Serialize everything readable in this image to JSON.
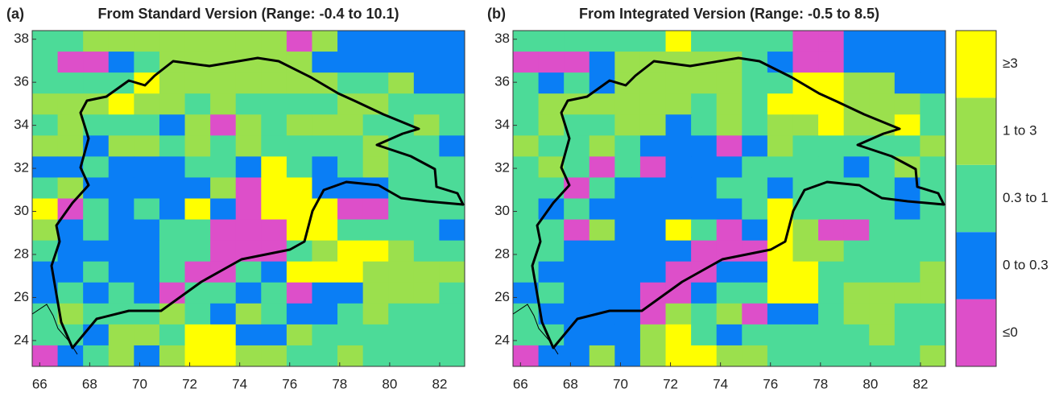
{
  "chart_data": [
    {
      "type": "heatmap",
      "panel_label": "(a)",
      "title": "From Standard Version (Range: -0.4 to 10.1)",
      "xlim": [
        65.7,
        83
      ],
      "ylim": [
        22.8,
        38.4
      ],
      "xticks": [
        66,
        68,
        70,
        72,
        74,
        76,
        78,
        80,
        82
      ],
      "yticks": [
        24,
        26,
        28,
        30,
        32,
        34,
        36,
        38
      ],
      "z": [
        [
          2,
          2,
          3,
          3,
          3,
          3,
          3,
          3,
          3,
          3,
          0,
          3,
          1,
          1,
          1,
          1,
          1
        ],
        [
          2,
          0,
          0,
          1,
          2,
          3,
          3,
          3,
          3,
          3,
          3,
          1,
          1,
          1,
          1,
          1,
          1
        ],
        [
          2,
          2,
          2,
          2,
          4,
          3,
          3,
          3,
          3,
          3,
          3,
          3,
          2,
          2,
          3,
          1,
          1
        ],
        [
          3,
          3,
          3,
          4,
          3,
          3,
          2,
          3,
          2,
          2,
          2,
          2,
          3,
          3,
          2,
          2,
          2
        ],
        [
          2,
          3,
          2,
          2,
          2,
          1,
          3,
          0,
          3,
          2,
          3,
          3,
          3,
          2,
          2,
          3,
          2
        ],
        [
          3,
          3,
          1,
          3,
          3,
          2,
          3,
          2,
          3,
          2,
          2,
          2,
          2,
          3,
          2,
          2,
          1
        ],
        [
          1,
          1,
          2,
          1,
          1,
          1,
          2,
          2,
          1,
          4,
          2,
          1,
          2,
          3,
          2,
          2,
          2
        ],
        [
          2,
          3,
          1,
          1,
          1,
          1,
          1,
          3,
          0,
          4,
          4,
          1,
          1,
          1,
          2,
          2,
          2
        ],
        [
          4,
          0,
          2,
          1,
          2,
          1,
          4,
          1,
          0,
          4,
          4,
          4,
          0,
          0,
          2,
          2,
          2
        ],
        [
          3,
          1,
          2,
          1,
          1,
          2,
          2,
          0,
          0,
          0,
          4,
          4,
          2,
          2,
          2,
          2,
          1
        ],
        [
          2,
          1,
          1,
          1,
          1,
          2,
          2,
          0,
          0,
          0,
          2,
          3,
          4,
          4,
          3,
          2,
          2
        ],
        [
          1,
          1,
          2,
          1,
          1,
          2,
          0,
          0,
          2,
          1,
          4,
          4,
          4,
          3,
          3,
          3,
          3
        ],
        [
          1,
          2,
          1,
          2,
          1,
          0,
          2,
          2,
          1,
          2,
          0,
          1,
          1,
          3,
          3,
          3,
          2
        ],
        [
          2,
          3,
          2,
          2,
          2,
          3,
          2,
          1,
          3,
          2,
          1,
          1,
          2,
          3,
          2,
          2,
          2
        ],
        [
          2,
          2,
          1,
          3,
          3,
          2,
          4,
          4,
          1,
          1,
          3,
          2,
          2,
          2,
          2,
          2,
          2
        ],
        [
          0,
          1,
          2,
          3,
          1,
          3,
          4,
          4,
          3,
          3,
          2,
          2,
          3,
          2,
          2,
          2,
          2
        ]
      ]
    },
    {
      "type": "heatmap",
      "panel_label": "(b)",
      "title": "From Integrated Version (Range: -0.5 to 8.5)",
      "xlim": [
        65.7,
        83
      ],
      "ylim": [
        22.8,
        38.4
      ],
      "xticks": [
        66,
        68,
        70,
        72,
        74,
        76,
        78,
        80,
        82
      ],
      "yticks": [
        24,
        26,
        28,
        30,
        32,
        34,
        36,
        38
      ],
      "z": [
        [
          2,
          2,
          2,
          2,
          2,
          2,
          4,
          2,
          2,
          2,
          2,
          0,
          0,
          1,
          1,
          1,
          1
        ],
        [
          0,
          0,
          0,
          1,
          3,
          3,
          3,
          3,
          3,
          2,
          1,
          0,
          0,
          1,
          1,
          1,
          1
        ],
        [
          2,
          1,
          2,
          1,
          3,
          3,
          3,
          3,
          3,
          2,
          2,
          4,
          4,
          3,
          3,
          1,
          1
        ],
        [
          2,
          3,
          3,
          3,
          3,
          3,
          3,
          2,
          3,
          2,
          4,
          4,
          4,
          3,
          3,
          3,
          2
        ],
        [
          2,
          3,
          2,
          2,
          3,
          3,
          1,
          2,
          3,
          2,
          3,
          3,
          4,
          3,
          3,
          4,
          2
        ],
        [
          3,
          2,
          2,
          3,
          2,
          1,
          1,
          1,
          0,
          1,
          3,
          2,
          2,
          2,
          2,
          2,
          3
        ],
        [
          2,
          3,
          2,
          0,
          2,
          0,
          1,
          1,
          1,
          2,
          2,
          2,
          2,
          1,
          2,
          3,
          2
        ],
        [
          2,
          2,
          0,
          2,
          1,
          1,
          1,
          1,
          2,
          2,
          1,
          2,
          2,
          2,
          2,
          1,
          2
        ],
        [
          2,
          1,
          2,
          1,
          1,
          1,
          1,
          1,
          1,
          2,
          4,
          2,
          2,
          2,
          2,
          1,
          2
        ],
        [
          2,
          2,
          0,
          3,
          1,
          1,
          4,
          2,
          0,
          1,
          4,
          3,
          0,
          0,
          2,
          2,
          2
        ],
        [
          2,
          2,
          1,
          1,
          1,
          1,
          1,
          0,
          0,
          0,
          4,
          3,
          3,
          2,
          2,
          2,
          2
        ],
        [
          2,
          1,
          1,
          1,
          1,
          1,
          0,
          0,
          1,
          1,
          4,
          4,
          2,
          2,
          2,
          2,
          3
        ],
        [
          1,
          2,
          1,
          1,
          1,
          0,
          0,
          1,
          2,
          2,
          4,
          4,
          2,
          3,
          3,
          3,
          3
        ],
        [
          2,
          1,
          1,
          1,
          1,
          0,
          3,
          2,
          3,
          0,
          1,
          1,
          2,
          3,
          3,
          2,
          2
        ],
        [
          2,
          2,
          1,
          1,
          1,
          3,
          4,
          2,
          1,
          2,
          2,
          2,
          2,
          2,
          3,
          2,
          2
        ],
        [
          0,
          1,
          1,
          3,
          1,
          3,
          4,
          4,
          3,
          3,
          2,
          2,
          2,
          2,
          2,
          2,
          3
        ]
      ]
    }
  ],
  "legend": {
    "labels": [
      "≤0",
      "0 to 0.3",
      "0.3 to 1",
      "1 to 3",
      "≥3"
    ],
    "colors": [
      "#dd4fc9",
      "#0a7ef5",
      "#4cdb98",
      "#9be04d",
      "#ffff00"
    ]
  }
}
